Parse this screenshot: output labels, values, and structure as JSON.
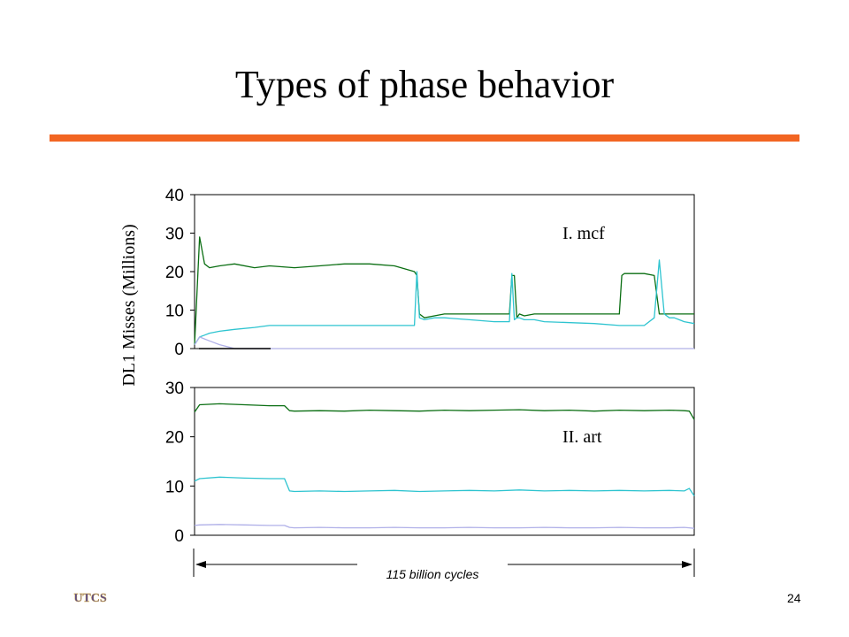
{
  "slide": {
    "title": "Types of phase behavior",
    "page_number": "24",
    "accent_color": "#f26522",
    "logo_text": "UTCS"
  },
  "chart_data": [
    {
      "type": "line",
      "panel_label": "I. mcf",
      "ylabel": "DL1 Misses (Millions)",
      "ylim": [
        0,
        40
      ],
      "yticks": [
        0,
        10,
        20,
        30,
        40
      ],
      "grid": false,
      "x": [
        0,
        1,
        2,
        3,
        5,
        8,
        12,
        15,
        20,
        25,
        30,
        35,
        40,
        44,
        44.5,
        45,
        46,
        48,
        50,
        55,
        60,
        63,
        63.5,
        64,
        64.5,
        65,
        66,
        68,
        70,
        80,
        85,
        85.5,
        86,
        87,
        88,
        90,
        92,
        93,
        94,
        95,
        96,
        97,
        98,
        100
      ],
      "series": [
        {
          "color": "#0a6e12",
          "values": [
            1,
            29,
            22,
            21,
            21.5,
            22,
            21,
            21.5,
            21,
            21.5,
            22,
            22,
            21.5,
            20,
            19,
            9,
            8,
            8.5,
            9,
            9,
            9,
            9,
            19,
            19,
            8,
            9,
            8.5,
            9,
            9,
            9,
            9,
            19,
            19.5,
            19.5,
            19.5,
            19.5,
            19,
            9,
            9,
            9,
            9,
            9,
            9,
            9
          ]
        },
        {
          "color": "#2ec4d0",
          "values": [
            1,
            3,
            3.5,
            4,
            4.5,
            5,
            5.5,
            6,
            6,
            6,
            6,
            6,
            6,
            6,
            20,
            8,
            7.5,
            8,
            8,
            7.5,
            7,
            7,
            19.5,
            7.5,
            8,
            8,
            7.5,
            7.5,
            7,
            6.5,
            6,
            6,
            6,
            6,
            6,
            6,
            8,
            23,
            9,
            8,
            8,
            7.5,
            7,
            6.5
          ]
        },
        {
          "color": "#b0b0e8",
          "values": [
            1,
            3,
            2.5,
            2,
            1,
            0,
            0,
            0,
            0,
            0,
            0,
            0,
            0,
            0,
            0,
            0,
            0,
            0,
            0,
            0,
            0,
            0,
            0,
            0,
            0,
            0,
            0,
            0,
            0,
            0,
            0,
            0,
            0,
            0,
            0,
            0,
            0,
            0,
            0,
            0,
            0,
            0,
            0,
            0
          ]
        }
      ]
    },
    {
      "type": "line",
      "panel_label": "II. art",
      "ylim": [
        0,
        30
      ],
      "yticks": [
        0,
        10,
        20,
        30
      ],
      "grid": false,
      "x": [
        0,
        1,
        5,
        10,
        15,
        18,
        19,
        20,
        25,
        30,
        35,
        40,
        45,
        50,
        55,
        60,
        65,
        70,
        75,
        80,
        85,
        90,
        95,
        98,
        99,
        100
      ],
      "series": [
        {
          "color": "#0a6e12",
          "values": [
            25,
            26.5,
            26.7,
            26.5,
            26.3,
            26.3,
            25.3,
            25.2,
            25.3,
            25.2,
            25.4,
            25.3,
            25.2,
            25.4,
            25.3,
            25.4,
            25.5,
            25.3,
            25.4,
            25.2,
            25.4,
            25.3,
            25.4,
            25.3,
            25.2,
            23.5
          ]
        },
        {
          "color": "#2ec4d0",
          "values": [
            11,
            11.5,
            11.8,
            11.6,
            11.5,
            11.5,
            9,
            8.9,
            9,
            8.9,
            9,
            9.1,
            8.9,
            9,
            9.1,
            9,
            9.2,
            9,
            9.1,
            9,
            9.1,
            9,
            9.1,
            9,
            9.5,
            8
          ]
        },
        {
          "color": "#b0b0e8",
          "values": [
            2,
            2.1,
            2.2,
            2.1,
            2,
            2,
            1.6,
            1.5,
            1.6,
            1.5,
            1.5,
            1.6,
            1.5,
            1.5,
            1.6,
            1.5,
            1.5,
            1.6,
            1.5,
            1.5,
            1.6,
            1.5,
            1.5,
            1.6,
            1.5,
            1.4
          ]
        }
      ]
    }
  ],
  "x_span_label": "115 billion cycles"
}
